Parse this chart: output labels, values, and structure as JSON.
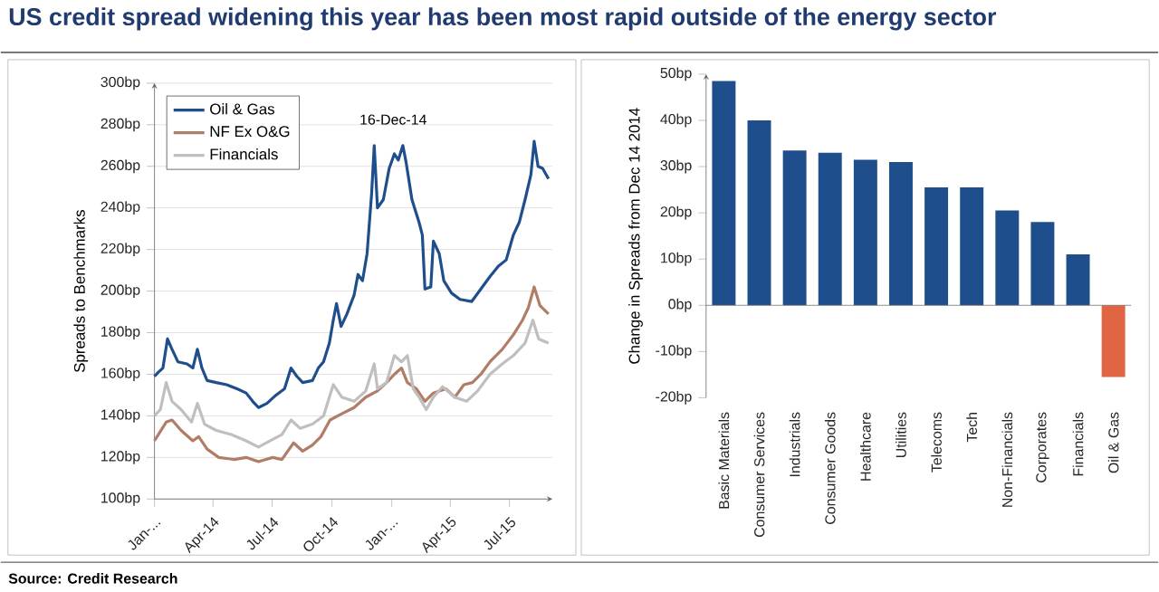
{
  "chart_data": [
    {
      "type": "line",
      "title": "US credit spread widening this year has been most rapid outside of the energy sector",
      "ylabel": "Spreads to Benchmarks",
      "annotations": [
        "16-Dec-14"
      ],
      "xlim": [
        "2014-01-01",
        "2015-09-05"
      ],
      "xticks": [
        {
          "value": "2014-01-01",
          "label": "Jan-..."
        },
        {
          "value": "2014-04-01",
          "label": "Apr-14"
        },
        {
          "value": "2014-07-01",
          "label": "Jul-14"
        },
        {
          "value": "2014-10-01",
          "label": "Oct-14"
        },
        {
          "value": "2015-01-01",
          "label": "Jan-..."
        },
        {
          "value": "2015-04-01",
          "label": "Apr-15"
        },
        {
          "value": "2015-07-01",
          "label": "Jul-15"
        }
      ],
      "ylim": [
        100,
        300
      ],
      "yticks": [
        {
          "value": 100,
          "label": "100bp"
        },
        {
          "value": 120,
          "label": "120bp"
        },
        {
          "value": 140,
          "label": "140bp"
        },
        {
          "value": 160,
          "label": "160bp"
        },
        {
          "value": 180,
          "label": "180bp"
        },
        {
          "value": 200,
          "label": "200bp"
        },
        {
          "value": 220,
          "label": "220bp"
        },
        {
          "value": 240,
          "label": "240bp"
        },
        {
          "value": 260,
          "label": "260bp"
        },
        {
          "value": 280,
          "label": "280bp"
        },
        {
          "value": 300,
          "label": "300bp"
        }
      ],
      "grid": "y",
      "legend": "top left",
      "series": [
        {
          "name": "Oil & Gas",
          "color": "#1f4e8c",
          "x": [
            "2014-01-01",
            "2014-01-07",
            "2014-01-14",
            "2014-01-21",
            "2014-01-28",
            "2014-02-06",
            "2014-02-20",
            "2014-03-01",
            "2014-03-08",
            "2014-03-15",
            "2014-03-23",
            "2014-04-06",
            "2014-04-22",
            "2014-05-08",
            "2014-05-22",
            "2014-06-01",
            "2014-06-10",
            "2014-06-23",
            "2014-07-07",
            "2014-07-20",
            "2014-07-30",
            "2014-08-08",
            "2014-08-17",
            "2014-09-01",
            "2014-09-10",
            "2014-09-18",
            "2014-09-27",
            "2014-10-03",
            "2014-10-08",
            "2014-10-15",
            "2014-10-24",
            "2014-11-04",
            "2014-11-10",
            "2014-11-17",
            "2014-11-24",
            "2014-12-01",
            "2014-12-05",
            "2014-12-10",
            "2014-12-19",
            "2014-12-28",
            "2015-01-05",
            "2015-01-11",
            "2015-01-18",
            "2015-01-23",
            "2015-02-01",
            "2015-02-12",
            "2015-02-17",
            "2015-02-21",
            "2015-03-02",
            "2015-03-06",
            "2015-03-15",
            "2015-03-22",
            "2015-04-03",
            "2015-04-16",
            "2015-05-04",
            "2015-05-18",
            "2015-06-01",
            "2015-06-14",
            "2015-06-26",
            "2015-07-07",
            "2015-07-16",
            "2015-07-25",
            "2015-08-03",
            "2015-08-08",
            "2015-08-14",
            "2015-08-21",
            "2015-08-30"
          ],
          "values": [
            159,
            161,
            163,
            177,
            172,
            166,
            165,
            163,
            172,
            163,
            157,
            156,
            155,
            153,
            151,
            147,
            144,
            146,
            150,
            153,
            163,
            159,
            156,
            157,
            163,
            166,
            175,
            186,
            194,
            183,
            189,
            198,
            208,
            205,
            218,
            247,
            270,
            240,
            244,
            259,
            266,
            263,
            270,
            262,
            244,
            233,
            227,
            201,
            202,
            224,
            218,
            205,
            199,
            196,
            195,
            201,
            207,
            212,
            215,
            227,
            233,
            244,
            256,
            272,
            260,
            259,
            254
          ]
        },
        {
          "name": "NF Ex O&G",
          "color": "#b07d66",
          "x": [
            "2014-01-01",
            "2014-01-19",
            "2014-01-28",
            "2014-02-11",
            "2014-03-01",
            "2014-03-10",
            "2014-03-23",
            "2014-04-10",
            "2014-05-04",
            "2014-05-22",
            "2014-06-10",
            "2014-07-02",
            "2014-07-16",
            "2014-07-25",
            "2014-08-03",
            "2014-08-17",
            "2014-09-01",
            "2014-09-14",
            "2014-09-28",
            "2014-10-16",
            "2014-11-04",
            "2014-11-22",
            "2014-12-10",
            "2014-12-24",
            "2015-01-05",
            "2015-01-16",
            "2015-01-25",
            "2015-02-08",
            "2015-02-21",
            "2015-03-06",
            "2015-03-25",
            "2015-04-08",
            "2015-04-22",
            "2015-05-05",
            "2015-05-18",
            "2015-06-01",
            "2015-06-20",
            "2015-07-07",
            "2015-07-21",
            "2015-07-30",
            "2015-08-08",
            "2015-08-17",
            "2015-08-30"
          ],
          "values": [
            128,
            137,
            138,
            133,
            128,
            130,
            124,
            120,
            119,
            120,
            118,
            120,
            119,
            123,
            127,
            123,
            126,
            130,
            138,
            141,
            144,
            149,
            152,
            156,
            160,
            163,
            156,
            153,
            147,
            151,
            153,
            149,
            155,
            156,
            160,
            166,
            172,
            179,
            186,
            192,
            202,
            193,
            189
          ]
        },
        {
          "name": "Financials",
          "color": "#bfbfbf",
          "x": [
            "2014-01-01",
            "2014-01-10",
            "2014-01-19",
            "2014-01-28",
            "2014-02-11",
            "2014-02-27",
            "2014-03-08",
            "2014-03-19",
            "2014-04-06",
            "2014-04-29",
            "2014-05-22",
            "2014-06-10",
            "2014-06-28",
            "2014-07-16",
            "2014-07-30",
            "2014-08-13",
            "2014-09-01",
            "2014-09-18",
            "2014-10-03",
            "2014-10-16",
            "2014-11-04",
            "2014-11-22",
            "2014-12-05",
            "2014-12-10",
            "2014-12-24",
            "2015-01-05",
            "2015-01-16",
            "2015-01-25",
            "2015-02-03",
            "2015-02-12",
            "2015-02-23",
            "2015-03-06",
            "2015-03-20",
            "2015-04-08",
            "2015-04-26",
            "2015-05-13",
            "2015-06-01",
            "2015-06-20",
            "2015-07-07",
            "2015-07-25",
            "2015-08-06",
            "2015-08-15",
            "2015-08-30"
          ],
          "values": [
            140,
            143,
            156,
            147,
            143,
            137,
            146,
            136,
            133,
            131,
            128,
            125,
            128,
            131,
            138,
            134,
            136,
            140,
            155,
            149,
            147,
            152,
            165,
            153,
            156,
            169,
            166,
            169,
            153,
            149,
            143,
            149,
            154,
            149,
            147,
            152,
            160,
            165,
            169,
            175,
            186,
            177,
            175
          ]
        }
      ]
    },
    {
      "type": "bar",
      "ylabel": "Change in Spreads from Dec 14 2014",
      "annotations": [
        "Source: Credit Research"
      ],
      "categories": [
        "Basic Materials",
        "Consumer Services",
        "Industrials",
        "Consumer Goods",
        "Healthcare",
        "Utilities",
        "Telecoms",
        "Tech",
        "Non-Financials",
        "Corporates",
        "Financials",
        "Oil & Gas"
      ],
      "values": [
        48.5,
        40,
        33.5,
        33,
        31.5,
        31,
        25.5,
        25.5,
        20.5,
        18,
        11,
        -15.5
      ],
      "colors": [
        "#1f4e8c",
        "#1f4e8c",
        "#1f4e8c",
        "#1f4e8c",
        "#1f4e8c",
        "#1f4e8c",
        "#1f4e8c",
        "#1f4e8c",
        "#1f4e8c",
        "#1f4e8c",
        "#1f4e8c",
        "#e06543"
      ],
      "ylim": [
        -20,
        50
      ],
      "yticks": [
        {
          "value": -20,
          "label": "-20bp"
        },
        {
          "value": -10,
          "label": "-10bp"
        },
        {
          "value": 0,
          "label": "0bp"
        },
        {
          "value": 10,
          "label": "10bp"
        },
        {
          "value": 20,
          "label": "20bp"
        },
        {
          "value": 30,
          "label": "30bp"
        },
        {
          "value": 40,
          "label": "40bp"
        },
        {
          "value": 50,
          "label": "50bp"
        }
      ]
    }
  ]
}
